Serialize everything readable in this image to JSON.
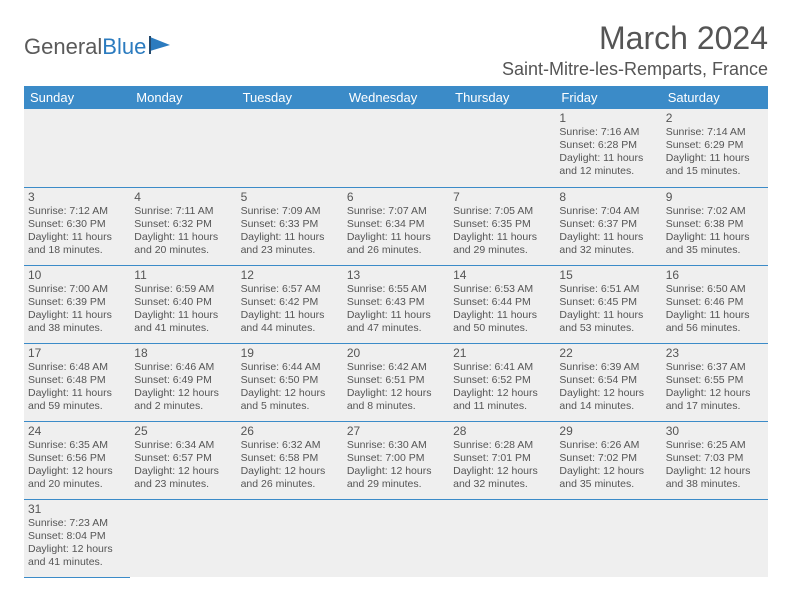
{
  "logo": {
    "text1": "General",
    "text2": "Blue"
  },
  "title": "March 2024",
  "location": "Saint-Mitre-les-Remparts, France",
  "colors": {
    "header_bg": "#3b8bc8",
    "header_text": "#ffffff",
    "cell_bg": "#efefef",
    "text": "#555555",
    "border": "#3b8bc8"
  },
  "day_headers": [
    "Sunday",
    "Monday",
    "Tuesday",
    "Wednesday",
    "Thursday",
    "Friday",
    "Saturday"
  ],
  "weeks": [
    [
      null,
      null,
      null,
      null,
      null,
      {
        "n": "1",
        "sr": "7:16 AM",
        "ss": "6:28 PM",
        "dl": "11 hours and 12 minutes."
      },
      {
        "n": "2",
        "sr": "7:14 AM",
        "ss": "6:29 PM",
        "dl": "11 hours and 15 minutes."
      }
    ],
    [
      {
        "n": "3",
        "sr": "7:12 AM",
        "ss": "6:30 PM",
        "dl": "11 hours and 18 minutes."
      },
      {
        "n": "4",
        "sr": "7:11 AM",
        "ss": "6:32 PM",
        "dl": "11 hours and 20 minutes."
      },
      {
        "n": "5",
        "sr": "7:09 AM",
        "ss": "6:33 PM",
        "dl": "11 hours and 23 minutes."
      },
      {
        "n": "6",
        "sr": "7:07 AM",
        "ss": "6:34 PM",
        "dl": "11 hours and 26 minutes."
      },
      {
        "n": "7",
        "sr": "7:05 AM",
        "ss": "6:35 PM",
        "dl": "11 hours and 29 minutes."
      },
      {
        "n": "8",
        "sr": "7:04 AM",
        "ss": "6:37 PM",
        "dl": "11 hours and 32 minutes."
      },
      {
        "n": "9",
        "sr": "7:02 AM",
        "ss": "6:38 PM",
        "dl": "11 hours and 35 minutes."
      }
    ],
    [
      {
        "n": "10",
        "sr": "7:00 AM",
        "ss": "6:39 PM",
        "dl": "11 hours and 38 minutes."
      },
      {
        "n": "11",
        "sr": "6:59 AM",
        "ss": "6:40 PM",
        "dl": "11 hours and 41 minutes."
      },
      {
        "n": "12",
        "sr": "6:57 AM",
        "ss": "6:42 PM",
        "dl": "11 hours and 44 minutes."
      },
      {
        "n": "13",
        "sr": "6:55 AM",
        "ss": "6:43 PM",
        "dl": "11 hours and 47 minutes."
      },
      {
        "n": "14",
        "sr": "6:53 AM",
        "ss": "6:44 PM",
        "dl": "11 hours and 50 minutes."
      },
      {
        "n": "15",
        "sr": "6:51 AM",
        "ss": "6:45 PM",
        "dl": "11 hours and 53 minutes."
      },
      {
        "n": "16",
        "sr": "6:50 AM",
        "ss": "6:46 PM",
        "dl": "11 hours and 56 minutes."
      }
    ],
    [
      {
        "n": "17",
        "sr": "6:48 AM",
        "ss": "6:48 PM",
        "dl": "11 hours and 59 minutes."
      },
      {
        "n": "18",
        "sr": "6:46 AM",
        "ss": "6:49 PM",
        "dl": "12 hours and 2 minutes."
      },
      {
        "n": "19",
        "sr": "6:44 AM",
        "ss": "6:50 PM",
        "dl": "12 hours and 5 minutes."
      },
      {
        "n": "20",
        "sr": "6:42 AM",
        "ss": "6:51 PM",
        "dl": "12 hours and 8 minutes."
      },
      {
        "n": "21",
        "sr": "6:41 AM",
        "ss": "6:52 PM",
        "dl": "12 hours and 11 minutes."
      },
      {
        "n": "22",
        "sr": "6:39 AM",
        "ss": "6:54 PM",
        "dl": "12 hours and 14 minutes."
      },
      {
        "n": "23",
        "sr": "6:37 AM",
        "ss": "6:55 PM",
        "dl": "12 hours and 17 minutes."
      }
    ],
    [
      {
        "n": "24",
        "sr": "6:35 AM",
        "ss": "6:56 PM",
        "dl": "12 hours and 20 minutes."
      },
      {
        "n": "25",
        "sr": "6:34 AM",
        "ss": "6:57 PM",
        "dl": "12 hours and 23 minutes."
      },
      {
        "n": "26",
        "sr": "6:32 AM",
        "ss": "6:58 PM",
        "dl": "12 hours and 26 minutes."
      },
      {
        "n": "27",
        "sr": "6:30 AM",
        "ss": "7:00 PM",
        "dl": "12 hours and 29 minutes."
      },
      {
        "n": "28",
        "sr": "6:28 AM",
        "ss": "7:01 PM",
        "dl": "12 hours and 32 minutes."
      },
      {
        "n": "29",
        "sr": "6:26 AM",
        "ss": "7:02 PM",
        "dl": "12 hours and 35 minutes."
      },
      {
        "n": "30",
        "sr": "6:25 AM",
        "ss": "7:03 PM",
        "dl": "12 hours and 38 minutes."
      }
    ],
    [
      {
        "n": "31",
        "sr": "7:23 AM",
        "ss": "8:04 PM",
        "dl": "12 hours and 41 minutes."
      },
      null,
      null,
      null,
      null,
      null,
      null
    ]
  ],
  "labels": {
    "sunrise": "Sunrise:",
    "sunset": "Sunset:",
    "daylight": "Daylight:"
  }
}
